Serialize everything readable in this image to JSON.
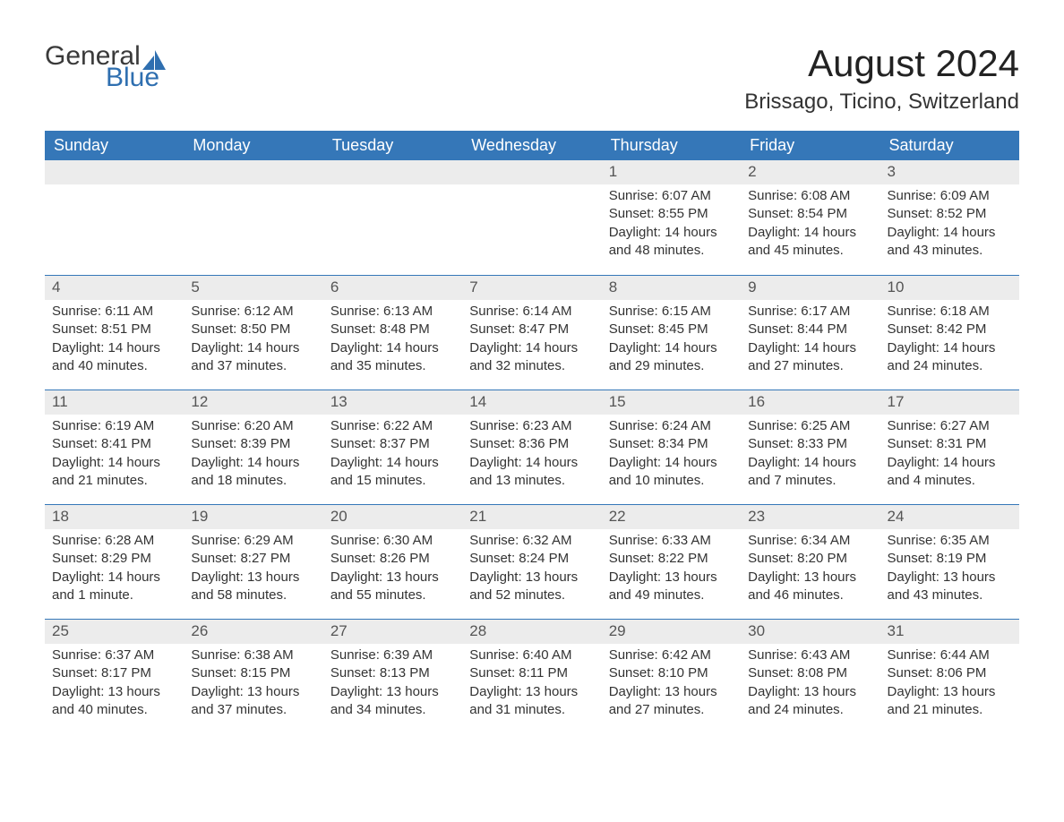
{
  "logo": {
    "text1": "General",
    "text2": "Blue",
    "brand_color": "#2f6fb0",
    "dark_color": "#3a3a3a"
  },
  "title": "August 2024",
  "location": "Brissago, Ticino, Switzerland",
  "header_bg": "#3577b8",
  "date_bg": "#ececec",
  "days": [
    "Sunday",
    "Monday",
    "Tuesday",
    "Wednesday",
    "Thursday",
    "Friday",
    "Saturday"
  ],
  "weeks": [
    [
      null,
      null,
      null,
      null,
      {
        "d": "1",
        "sr": "Sunrise: 6:07 AM",
        "ss": "Sunset: 8:55 PM",
        "dl": "Daylight: 14 hours and 48 minutes."
      },
      {
        "d": "2",
        "sr": "Sunrise: 6:08 AM",
        "ss": "Sunset: 8:54 PM",
        "dl": "Daylight: 14 hours and 45 minutes."
      },
      {
        "d": "3",
        "sr": "Sunrise: 6:09 AM",
        "ss": "Sunset: 8:52 PM",
        "dl": "Daylight: 14 hours and 43 minutes."
      }
    ],
    [
      {
        "d": "4",
        "sr": "Sunrise: 6:11 AM",
        "ss": "Sunset: 8:51 PM",
        "dl": "Daylight: 14 hours and 40 minutes."
      },
      {
        "d": "5",
        "sr": "Sunrise: 6:12 AM",
        "ss": "Sunset: 8:50 PM",
        "dl": "Daylight: 14 hours and 37 minutes."
      },
      {
        "d": "6",
        "sr": "Sunrise: 6:13 AM",
        "ss": "Sunset: 8:48 PM",
        "dl": "Daylight: 14 hours and 35 minutes."
      },
      {
        "d": "7",
        "sr": "Sunrise: 6:14 AM",
        "ss": "Sunset: 8:47 PM",
        "dl": "Daylight: 14 hours and 32 minutes."
      },
      {
        "d": "8",
        "sr": "Sunrise: 6:15 AM",
        "ss": "Sunset: 8:45 PM",
        "dl": "Daylight: 14 hours and 29 minutes."
      },
      {
        "d": "9",
        "sr": "Sunrise: 6:17 AM",
        "ss": "Sunset: 8:44 PM",
        "dl": "Daylight: 14 hours and 27 minutes."
      },
      {
        "d": "10",
        "sr": "Sunrise: 6:18 AM",
        "ss": "Sunset: 8:42 PM",
        "dl": "Daylight: 14 hours and 24 minutes."
      }
    ],
    [
      {
        "d": "11",
        "sr": "Sunrise: 6:19 AM",
        "ss": "Sunset: 8:41 PM",
        "dl": "Daylight: 14 hours and 21 minutes."
      },
      {
        "d": "12",
        "sr": "Sunrise: 6:20 AM",
        "ss": "Sunset: 8:39 PM",
        "dl": "Daylight: 14 hours and 18 minutes."
      },
      {
        "d": "13",
        "sr": "Sunrise: 6:22 AM",
        "ss": "Sunset: 8:37 PM",
        "dl": "Daylight: 14 hours and 15 minutes."
      },
      {
        "d": "14",
        "sr": "Sunrise: 6:23 AM",
        "ss": "Sunset: 8:36 PM",
        "dl": "Daylight: 14 hours and 13 minutes."
      },
      {
        "d": "15",
        "sr": "Sunrise: 6:24 AM",
        "ss": "Sunset: 8:34 PM",
        "dl": "Daylight: 14 hours and 10 minutes."
      },
      {
        "d": "16",
        "sr": "Sunrise: 6:25 AM",
        "ss": "Sunset: 8:33 PM",
        "dl": "Daylight: 14 hours and 7 minutes."
      },
      {
        "d": "17",
        "sr": "Sunrise: 6:27 AM",
        "ss": "Sunset: 8:31 PM",
        "dl": "Daylight: 14 hours and 4 minutes."
      }
    ],
    [
      {
        "d": "18",
        "sr": "Sunrise: 6:28 AM",
        "ss": "Sunset: 8:29 PM",
        "dl": "Daylight: 14 hours and 1 minute."
      },
      {
        "d": "19",
        "sr": "Sunrise: 6:29 AM",
        "ss": "Sunset: 8:27 PM",
        "dl": "Daylight: 13 hours and 58 minutes."
      },
      {
        "d": "20",
        "sr": "Sunrise: 6:30 AM",
        "ss": "Sunset: 8:26 PM",
        "dl": "Daylight: 13 hours and 55 minutes."
      },
      {
        "d": "21",
        "sr": "Sunrise: 6:32 AM",
        "ss": "Sunset: 8:24 PM",
        "dl": "Daylight: 13 hours and 52 minutes."
      },
      {
        "d": "22",
        "sr": "Sunrise: 6:33 AM",
        "ss": "Sunset: 8:22 PM",
        "dl": "Daylight: 13 hours and 49 minutes."
      },
      {
        "d": "23",
        "sr": "Sunrise: 6:34 AM",
        "ss": "Sunset: 8:20 PM",
        "dl": "Daylight: 13 hours and 46 minutes."
      },
      {
        "d": "24",
        "sr": "Sunrise: 6:35 AM",
        "ss": "Sunset: 8:19 PM",
        "dl": "Daylight: 13 hours and 43 minutes."
      }
    ],
    [
      {
        "d": "25",
        "sr": "Sunrise: 6:37 AM",
        "ss": "Sunset: 8:17 PM",
        "dl": "Daylight: 13 hours and 40 minutes."
      },
      {
        "d": "26",
        "sr": "Sunrise: 6:38 AM",
        "ss": "Sunset: 8:15 PM",
        "dl": "Daylight: 13 hours and 37 minutes."
      },
      {
        "d": "27",
        "sr": "Sunrise: 6:39 AM",
        "ss": "Sunset: 8:13 PM",
        "dl": "Daylight: 13 hours and 34 minutes."
      },
      {
        "d": "28",
        "sr": "Sunrise: 6:40 AM",
        "ss": "Sunset: 8:11 PM",
        "dl": "Daylight: 13 hours and 31 minutes."
      },
      {
        "d": "29",
        "sr": "Sunrise: 6:42 AM",
        "ss": "Sunset: 8:10 PM",
        "dl": "Daylight: 13 hours and 27 minutes."
      },
      {
        "d": "30",
        "sr": "Sunrise: 6:43 AM",
        "ss": "Sunset: 8:08 PM",
        "dl": "Daylight: 13 hours and 24 minutes."
      },
      {
        "d": "31",
        "sr": "Sunrise: 6:44 AM",
        "ss": "Sunset: 8:06 PM",
        "dl": "Daylight: 13 hours and 21 minutes."
      }
    ]
  ]
}
